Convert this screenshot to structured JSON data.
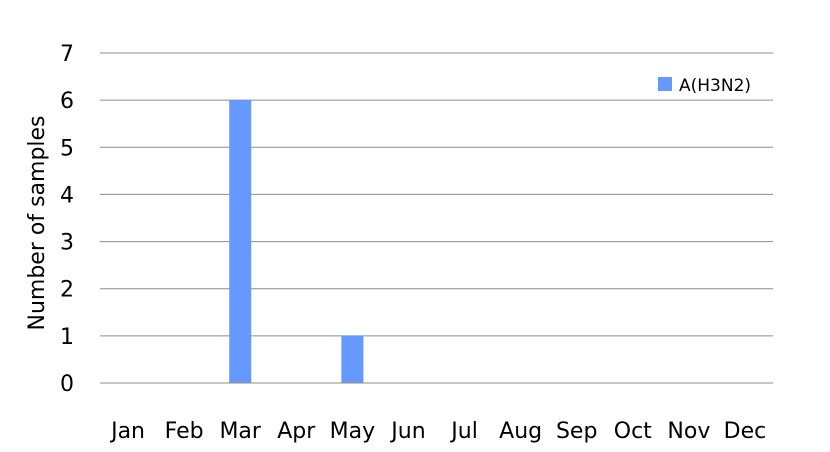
{
  "chart_data": {
    "type": "bar",
    "categories": [
      "Jan",
      "Feb",
      "Mar",
      "Apr",
      "May",
      "Jun",
      "Jul",
      "Aug",
      "Sep",
      "Oct",
      "Nov",
      "Dec"
    ],
    "series": [
      {
        "name": "A(H3N2)",
        "values": [
          0,
          0,
          6,
          0,
          1,
          0,
          0,
          0,
          0,
          0,
          0,
          0
        ],
        "color": "#6699ff"
      }
    ],
    "ylabel": "Number of samples",
    "ylim": [
      0,
      7
    ],
    "yticks": [
      0,
      1,
      2,
      3,
      4,
      5,
      6,
      7
    ],
    "grid": true,
    "legend_position": "top-right"
  }
}
